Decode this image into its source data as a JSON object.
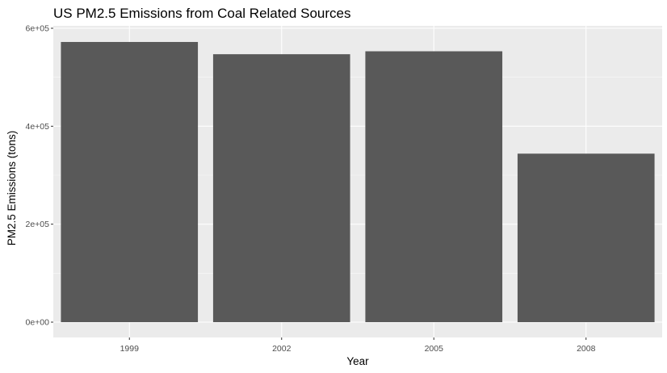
{
  "colors": {
    "panel_background": "#ebebeb",
    "grid_major": "#ffffff",
    "bar_fill": "#595959",
    "tick_text": "#4d4d4d",
    "tick_mark": "#333333"
  },
  "chart_data": {
    "type": "bar",
    "title": "US PM2.5 Emissions from Coal Related Sources",
    "xlabel": "Year",
    "ylabel": "PM2.5 Emissions (tons)",
    "categories": [
      "1999",
      "2002",
      "2005",
      "2008"
    ],
    "values": [
      572000,
      547000,
      553000,
      344000
    ],
    "ylim": [
      0,
      600000
    ],
    "y_ticks": [
      0,
      200000,
      400000,
      600000
    ],
    "y_tick_labels": [
      "0e+00",
      "2e+05",
      "4e+05",
      "6e+05"
    ],
    "grid": true
  }
}
